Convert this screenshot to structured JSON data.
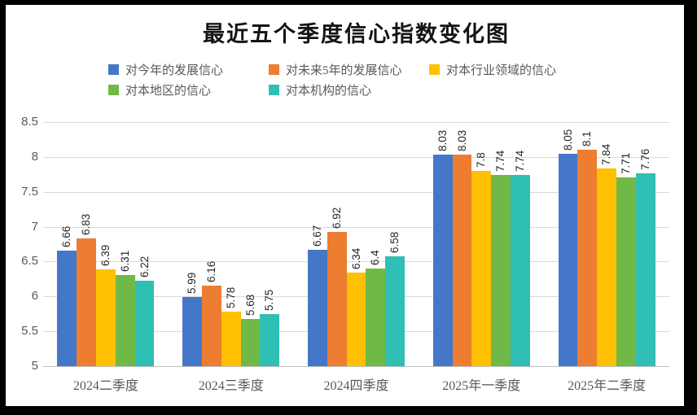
{
  "title": "最近五个季度信心指数变化图",
  "theme": {
    "frame": "#000000",
    "background": "#ffffff",
    "title_text": "#141414",
    "axis_text": "#595959",
    "label_text": "#262626",
    "grid": "#d9d9d9",
    "axis_line": "#bfbfbf"
  },
  "chart_data": {
    "type": "bar",
    "title": "最近五个季度信心指数变化图",
    "categories": [
      "2024二季度",
      "2024三季度",
      "2024四季度",
      "2025年一季度",
      "2025年二季度"
    ],
    "series": [
      {
        "name": "对今年的发展信心",
        "color": "#4577c9",
        "values": [
          6.66,
          5.99,
          6.67,
          8.03,
          8.05
        ]
      },
      {
        "name": "对未来5年的发展信心",
        "color": "#ed7d31",
        "values": [
          6.83,
          6.16,
          6.92,
          8.03,
          8.1
        ]
      },
      {
        "name": "对本行业领域的信心",
        "color": "#fec000",
        "values": [
          6.39,
          5.78,
          6.34,
          7.8,
          7.84
        ]
      },
      {
        "name": "对本地区的信心",
        "color": "#70b847",
        "values": [
          6.31,
          5.68,
          6.4,
          7.74,
          7.71
        ]
      },
      {
        "name": "对本机构的信心",
        "color": "#2fbfb4",
        "values": [
          6.22,
          5.75,
          6.58,
          7.74,
          7.76
        ]
      }
    ],
    "xlabel": "",
    "ylabel": "",
    "ylim": [
      5,
      8.5
    ],
    "ytick_step": 0.5,
    "grid": true,
    "legend_position": "top",
    "legend_rows": [
      [
        0,
        1,
        2
      ],
      [
        3,
        4
      ]
    ],
    "value_labels": "rotated-90-above-bars"
  }
}
